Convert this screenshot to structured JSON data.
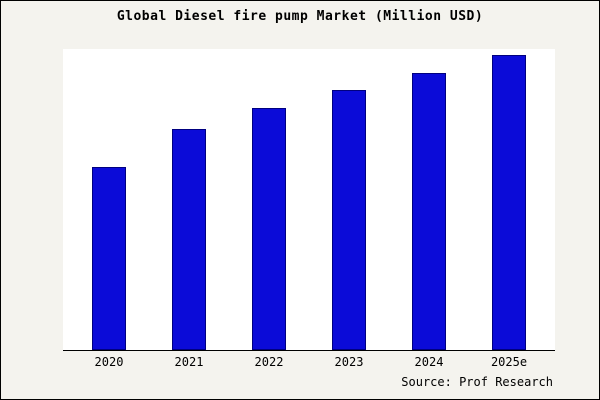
{
  "title": "Global Diesel fire pump Market (Million USD)",
  "source": "Source: Prof Research",
  "colors": {
    "bar_fill": "#0b0bd8",
    "bar_edge": "#000080",
    "background": "#f4f3ee",
    "plot_background": "#ffffff",
    "axis": "#000000"
  },
  "chart_data": {
    "type": "bar",
    "title": "Global Diesel fire pump Market (Million USD)",
    "categories": [
      "2020",
      "2021",
      "2022",
      "2023",
      "2024",
      "2025e"
    ],
    "values": [
      62,
      75,
      82,
      88,
      94,
      100
    ],
    "xlabel": "",
    "ylabel": "",
    "ylim": [
      0,
      102
    ],
    "grid": false,
    "legend": false,
    "y_axis_labels_visible": false,
    "annotations": [
      "Source: Prof Research"
    ]
  }
}
